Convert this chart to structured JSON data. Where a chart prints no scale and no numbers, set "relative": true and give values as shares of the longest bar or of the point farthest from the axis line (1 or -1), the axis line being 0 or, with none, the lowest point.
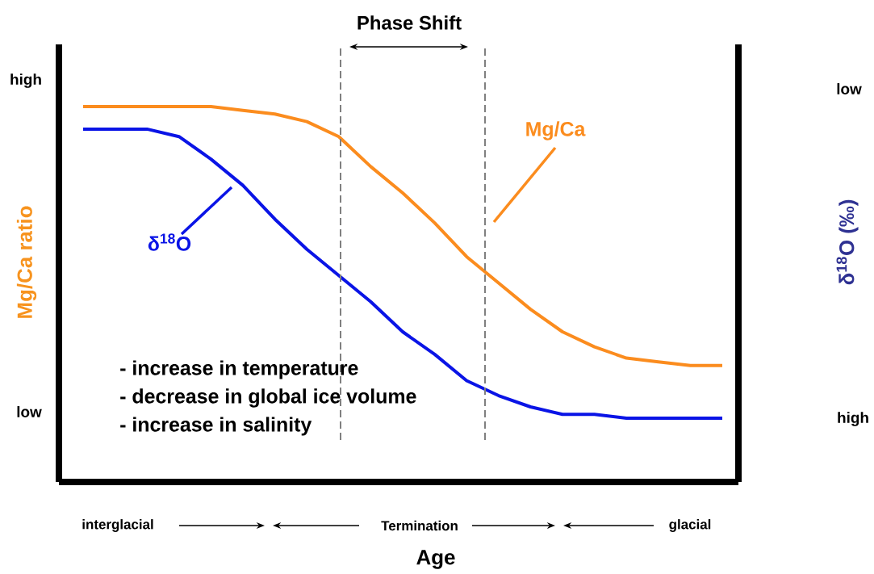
{
  "chart_data": {
    "type": "line",
    "relative": true,
    "xlabel": "Age",
    "ylabel": "Mg/Ca ratio",
    "y2label": "δ$^{18}$O (‰)",
    "categories": [
      null,
      null,
      null,
      null,
      null,
      null,
      null,
      null,
      null,
      null,
      null,
      null,
      null,
      null,
      null,
      null,
      null,
      null,
      null,
      null,
      null
    ],
    "series": [
      {
        "name": "Mg/Ca",
        "color": "#fb8c1e",
        "values": [
          1,
          1,
          1,
          1,
          1.0,
          0.99,
          0.98,
          0.96,
          0.92,
          0.84,
          0.77,
          0.69,
          0.6,
          0.53,
          0.46,
          0.4,
          0.36,
          0.33,
          0.32,
          0.31,
          0.31
        ]
      },
      {
        "name": "δ$^{18}$O",
        "color": "#0a14e6",
        "values": [
          0.94,
          0.94,
          0.94,
          0.92,
          0.86,
          0.79,
          0.7,
          0.62,
          0.55,
          0.48,
          0.4,
          0.34,
          0.27,
          0.23,
          0.2,
          0.18,
          0.18,
          0.17,
          0.17,
          0.17,
          0.17
        ]
      }
    ],
    "annotations": [
      "Phase Shift",
      "high",
      "low",
      "low",
      "high",
      "interglacial",
      "Termination",
      "glacial",
      "- increase in temperature",
      "- decrease in global ice volume",
      "- increase in salinity"
    ],
    "marker": "none",
    "line_style": "solid"
  }
}
